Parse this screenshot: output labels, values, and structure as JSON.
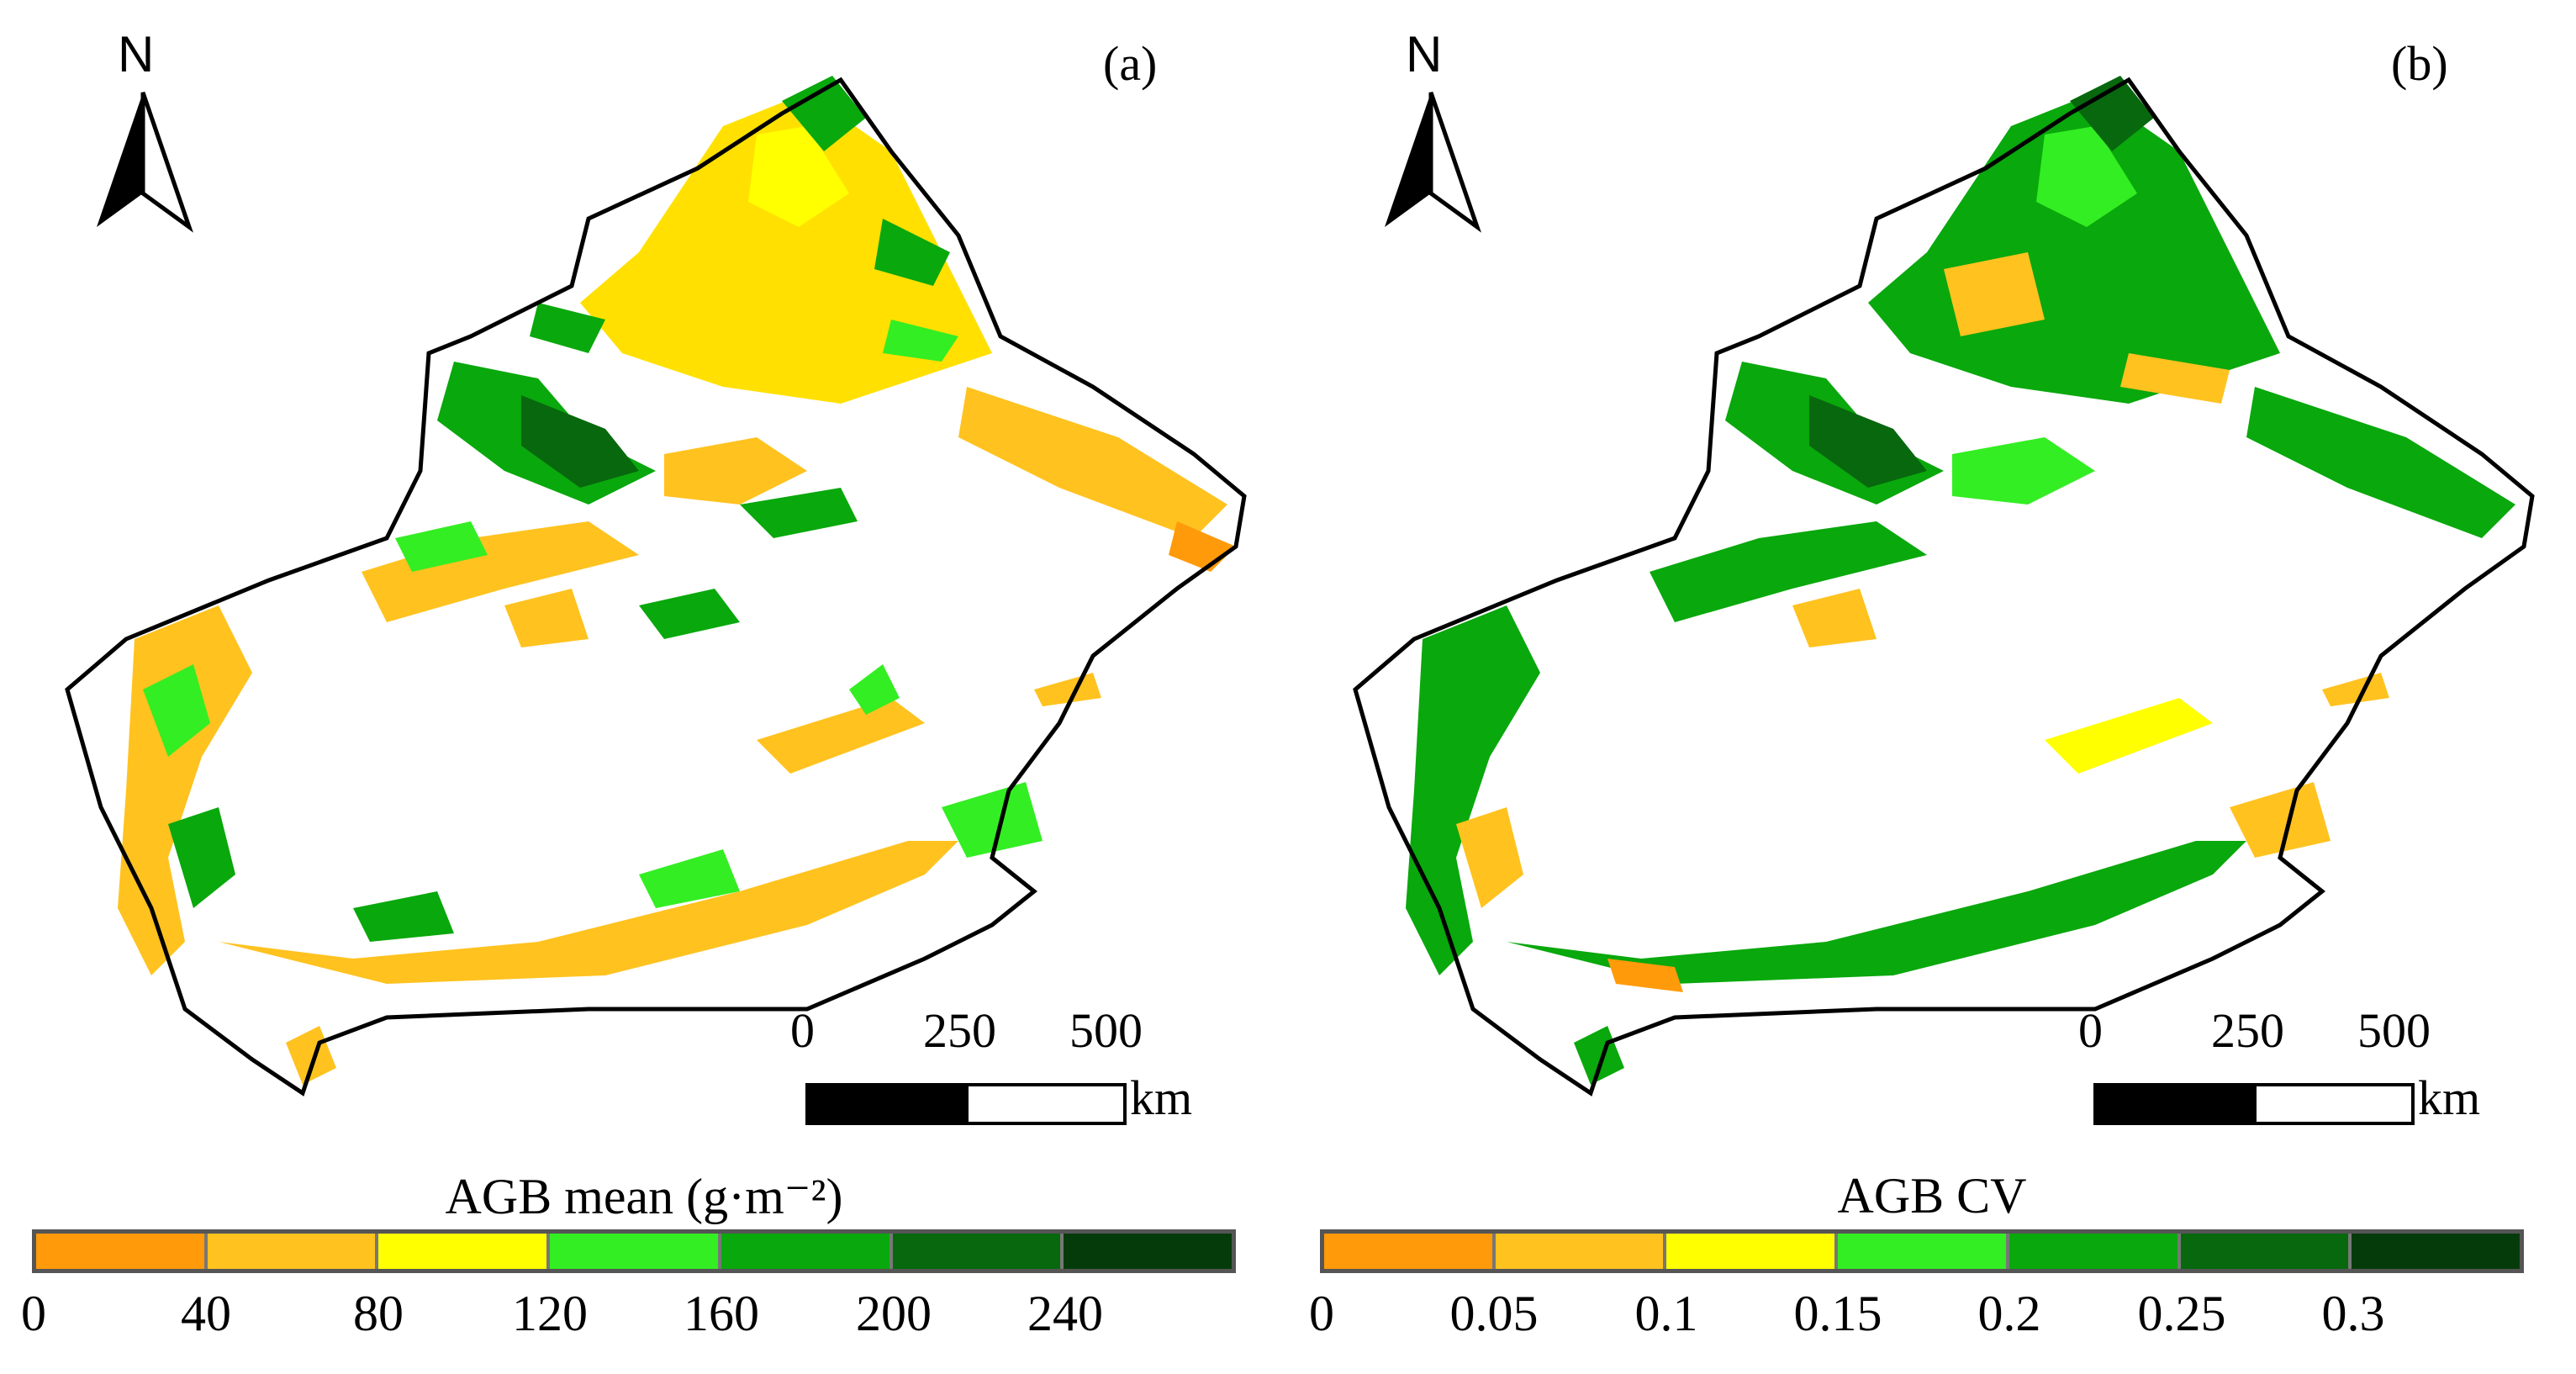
{
  "panels": [
    {
      "label": "(a)",
      "north": "N",
      "scale": {
        "ticks": [
          "0",
          "250",
          "500"
        ],
        "unit": "km"
      },
      "legend": {
        "title": "AGB mean (g·m⁻²)",
        "colors": [
          "#ff9a0a",
          "#ffc21f",
          "#ffff00",
          "#33ee22",
          "#09a80c",
          "#07680e",
          "#053b0a"
        ],
        "ticks": [
          "0",
          "40",
          "80",
          "120",
          "160",
          "200",
          "240"
        ]
      }
    },
    {
      "label": "(b)",
      "north": "N",
      "scale": {
        "ticks": [
          "0",
          "250",
          "500"
        ],
        "unit": "km"
      },
      "legend": {
        "title": "AGB CV",
        "colors": [
          "#ff9a0a",
          "#ffc21f",
          "#ffff00",
          "#33ee22",
          "#09a80c",
          "#07680e",
          "#053b0a"
        ],
        "ticks": [
          "0",
          "0.05",
          "0.1",
          "0.15",
          "0.2",
          "0.25",
          "0.3"
        ]
      }
    }
  ]
}
